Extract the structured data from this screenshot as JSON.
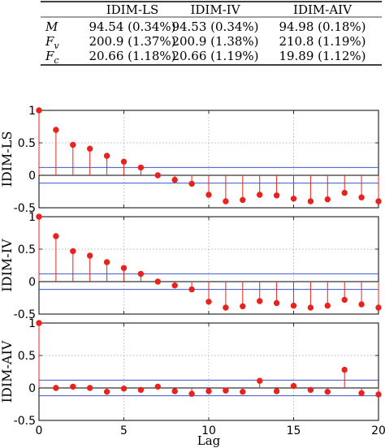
{
  "table": {
    "columns": [
      "",
      "IDIM-LS",
      "IDIM-IV",
      "IDIM-AIV"
    ],
    "rows": [
      {
        "label": "M",
        "sub": "",
        "cells": [
          "94.54 (0.34%)",
          "94.53 (0.34%)",
          "94.98 (0.18%)"
        ]
      },
      {
        "label": "F",
        "sub": "v",
        "cells": [
          "200.9 (1.37%)",
          "200.9 (1.38%)",
          "210.8 (1.19%)"
        ]
      },
      {
        "label": "F",
        "sub": "c",
        "cells": [
          "20.66 (1.18%)",
          "20.66 (1.19%)",
          "19.89 (1.12%)"
        ]
      }
    ]
  },
  "colors": {
    "stem": "#e8231c",
    "bound": "#3b57c8",
    "zero": "#000000",
    "grid": "#9a9a9a"
  },
  "chart_data": [
    {
      "type": "stem",
      "ylabel": "IDIM-LS",
      "xlabel": "",
      "xlim": [
        0,
        20
      ],
      "ylim": [
        -0.5,
        1
      ],
      "yticks": [
        "1",
        "0.5",
        "0",
        "-0.5"
      ],
      "yticks_values": [
        1,
        0.5,
        0,
        -0.5
      ],
      "xticks_values": [
        0,
        5,
        10,
        15,
        20
      ],
      "xticks": [
        "",
        "",
        "",
        "",
        ""
      ],
      "grid": true,
      "bounds": [
        0.12,
        -0.12
      ],
      "x": [
        0,
        1,
        2,
        3,
        4,
        5,
        6,
        7,
        8,
        9,
        10,
        11,
        12,
        13,
        14,
        15,
        16,
        17,
        18,
        19,
        20
      ],
      "values": [
        1.0,
        0.7,
        0.47,
        0.41,
        0.3,
        0.21,
        0.12,
        0.0,
        -0.07,
        -0.13,
        -0.3,
        -0.4,
        -0.38,
        -0.3,
        -0.31,
        -0.36,
        -0.4,
        -0.37,
        -0.27,
        -0.34,
        -0.4
      ]
    },
    {
      "type": "stem",
      "ylabel": "IDIM-IV",
      "xlabel": "",
      "xlim": [
        0,
        20
      ],
      "ylim": [
        -0.5,
        1
      ],
      "yticks": [
        "1",
        "0.5",
        "0",
        "-0.5"
      ],
      "yticks_values": [
        1,
        0.5,
        0,
        -0.5
      ],
      "xticks_values": [
        0,
        5,
        10,
        15,
        20
      ],
      "xticks": [
        "",
        "",
        "",
        "",
        ""
      ],
      "grid": true,
      "bounds": [
        0.12,
        -0.12
      ],
      "x": [
        0,
        1,
        2,
        3,
        4,
        5,
        6,
        7,
        8,
        9,
        10,
        11,
        12,
        13,
        14,
        15,
        16,
        17,
        18,
        19,
        20
      ],
      "values": [
        1.0,
        0.7,
        0.47,
        0.4,
        0.3,
        0.21,
        0.12,
        0.0,
        -0.06,
        -0.12,
        -0.31,
        -0.4,
        -0.38,
        -0.3,
        -0.33,
        -0.37,
        -0.4,
        -0.37,
        -0.28,
        -0.35,
        -0.4
      ]
    },
    {
      "type": "stem",
      "ylabel": "IDIM-AIV",
      "xlabel": "Lag",
      "xlim": [
        0,
        20
      ],
      "ylim": [
        -0.5,
        1
      ],
      "yticks": [
        "1",
        "0.5",
        "0",
        "-0.5"
      ],
      "yticks_values": [
        1,
        0.5,
        0,
        -0.5
      ],
      "xticks_values": [
        0,
        5,
        10,
        15,
        20
      ],
      "xticks": [
        "0",
        "5",
        "10",
        "15",
        "20"
      ],
      "grid": true,
      "bounds": [
        0.12,
        -0.12
      ],
      "x": [
        0,
        1,
        2,
        3,
        4,
        5,
        6,
        7,
        8,
        9,
        10,
        11,
        12,
        13,
        14,
        15,
        16,
        17,
        18,
        19,
        20
      ],
      "values": [
        1.0,
        0.0,
        0.02,
        0.0,
        -0.06,
        -0.01,
        -0.03,
        0.02,
        -0.05,
        -0.09,
        -0.05,
        -0.04,
        -0.06,
        0.11,
        -0.05,
        0.03,
        -0.03,
        -0.06,
        0.28,
        -0.08,
        -0.1
      ]
    }
  ]
}
